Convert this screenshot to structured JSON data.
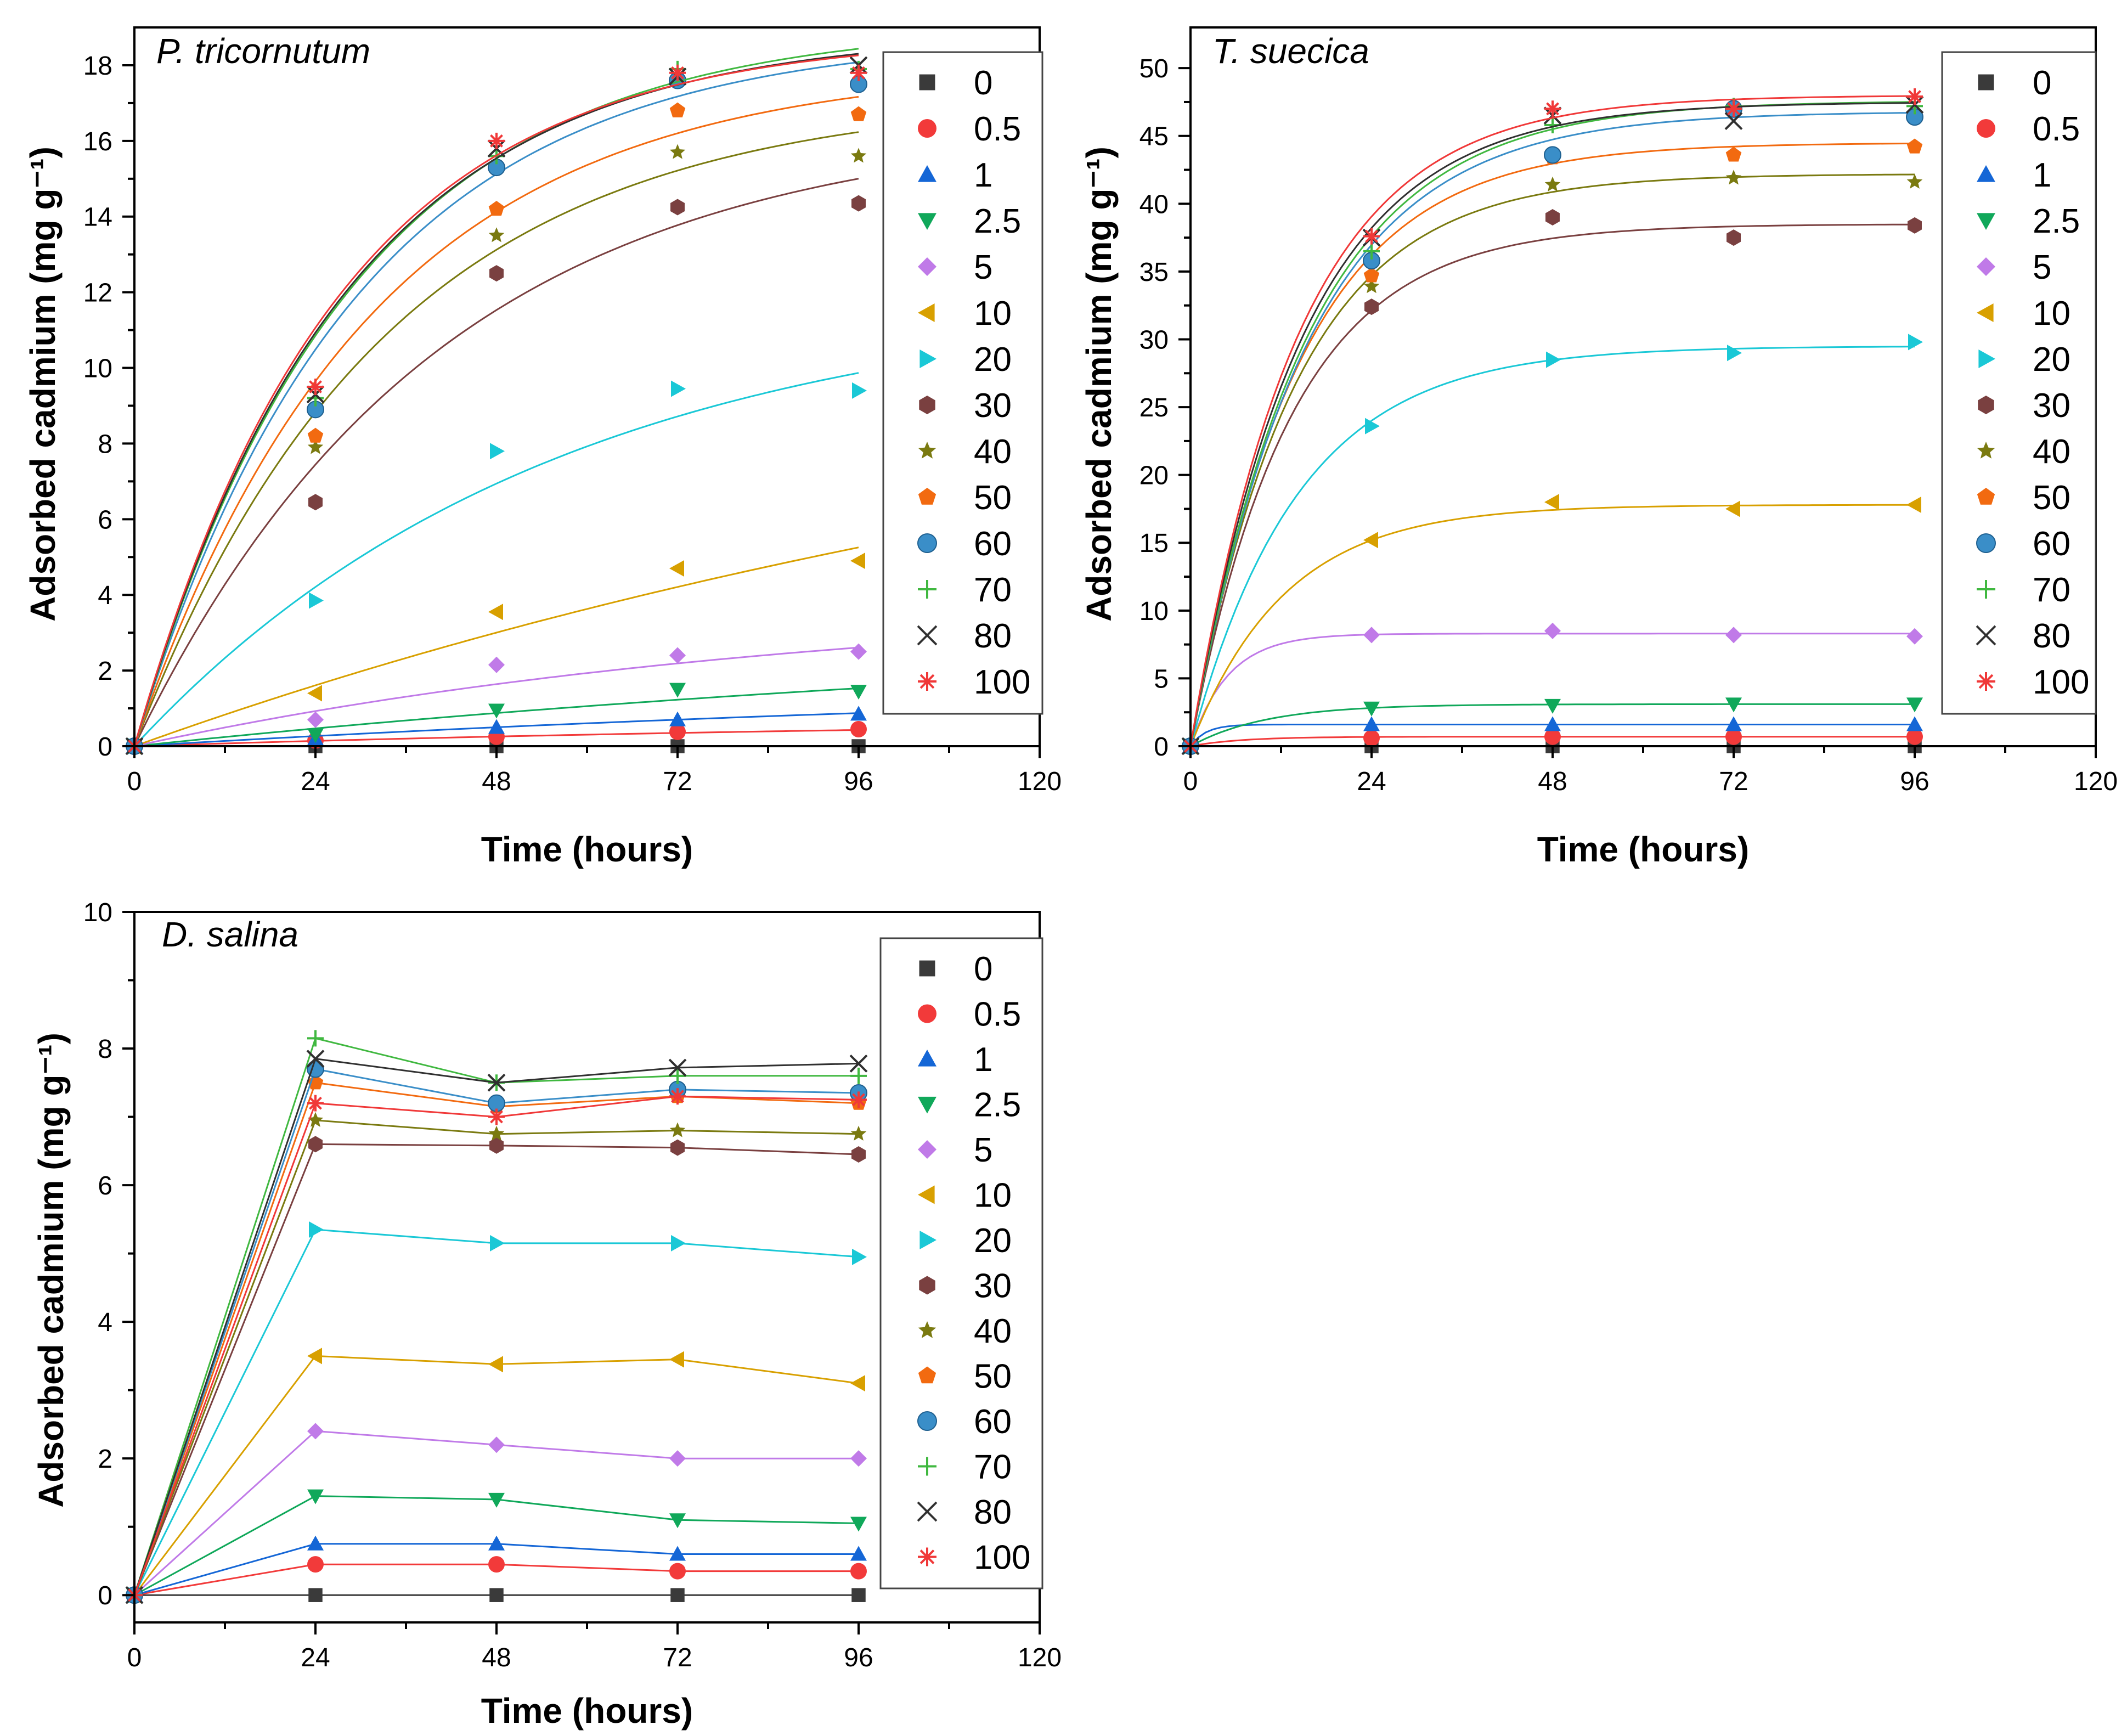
{
  "legend": {
    "labels": [
      "0",
      "0.5",
      "1",
      "2.5",
      "5",
      "10",
      "20",
      "30",
      "40",
      "50",
      "60",
      "70",
      "80",
      "100"
    ],
    "markers": [
      "square",
      "circle",
      "triangle-up",
      "triangle-down",
      "diamond",
      "triangle-left",
      "triangle-right",
      "hexagon",
      "star",
      "pentagon",
      "sphere",
      "plus",
      "cross",
      "asterisk"
    ],
    "colors": [
      "#3a3a3a",
      "#f23a3a",
      "#1466d6",
      "#10a85a",
      "#c07ae8",
      "#d8a000",
      "#1ac8d6",
      "#7a4040",
      "#7a7a10",
      "#f26a10",
      "#3a8ec8",
      "#40b840",
      "#303030",
      "#f03838"
    ]
  },
  "chart_data": [
    {
      "type": "scatter",
      "title": "P. tricornutum",
      "xlabel": "Time (hours)",
      "ylabel": "Adsorbed cadmium (mg g⁻¹)",
      "xlim": [
        0,
        120
      ],
      "ylim": [
        0,
        19
      ],
      "xticks": [
        0,
        24,
        48,
        72,
        96,
        120
      ],
      "yticks": [
        0,
        2,
        4,
        6,
        8,
        10,
        12,
        14,
        16,
        18
      ],
      "x": [
        0,
        24,
        48,
        72,
        96
      ],
      "fit": "exponential",
      "series": [
        {
          "name": "0",
          "values": [
            0,
            0,
            0,
            0,
            0
          ],
          "asym": 0,
          "k": 0.02
        },
        {
          "name": "0.5",
          "values": [
            0,
            0.15,
            0.25,
            0.38,
            0.45
          ],
          "asym": 0.8,
          "k": 0.008
        },
        {
          "name": "1",
          "values": [
            0,
            0.2,
            0.5,
            0.7,
            0.85
          ],
          "asym": 2.0,
          "k": 0.006
        },
        {
          "name": "2.5",
          "values": [
            0,
            0.3,
            0.95,
            1.5,
            1.45
          ],
          "asym": 3.5,
          "k": 0.006
        },
        {
          "name": "5",
          "values": [
            0,
            0.7,
            2.15,
            2.4,
            2.5
          ],
          "asym": 4.0,
          "k": 0.011
        },
        {
          "name": "10",
          "values": [
            0,
            1.4,
            3.55,
            4.7,
            4.9
          ],
          "asym": 12.0,
          "k": 0.006
        },
        {
          "name": "20",
          "values": [
            0,
            3.85,
            7.8,
            9.45,
            9.4
          ],
          "asym": 12.0,
          "k": 0.018
        },
        {
          "name": "30",
          "values": [
            0,
            6.45,
            12.5,
            14.25,
            14.35
          ],
          "asym": 16.5,
          "k": 0.025
        },
        {
          "name": "40",
          "values": [
            0,
            7.9,
            13.5,
            15.7,
            15.6
          ],
          "asym": 17.2,
          "k": 0.03
        },
        {
          "name": "50",
          "values": [
            0,
            8.2,
            14.2,
            16.8,
            16.7
          ],
          "asym": 18.0,
          "k": 0.032
        },
        {
          "name": "60",
          "values": [
            0,
            8.9,
            15.3,
            17.6,
            17.5
          ],
          "asym": 18.8,
          "k": 0.034
        },
        {
          "name": "70",
          "values": [
            0,
            9.2,
            15.6,
            17.9,
            17.9
          ],
          "asym": 19.1,
          "k": 0.035
        },
        {
          "name": "80",
          "values": [
            0,
            9.3,
            15.8,
            17.7,
            18.0
          ],
          "asym": 18.9,
          "k": 0.036
        },
        {
          "name": "100",
          "values": [
            0,
            9.5,
            16.0,
            17.8,
            17.8
          ],
          "asym": 18.8,
          "k": 0.037
        }
      ]
    },
    {
      "type": "scatter",
      "title": "T. suecica",
      "xlabel": "Time (hours)",
      "ylabel": "Adsorbed cadmium (mg g⁻¹)",
      "xlim": [
        0,
        120
      ],
      "ylim": [
        0,
        53
      ],
      "xticks": [
        0,
        24,
        48,
        72,
        96,
        120
      ],
      "yticks": [
        0,
        5,
        10,
        15,
        20,
        25,
        30,
        35,
        40,
        45,
        50
      ],
      "x": [
        0,
        24,
        48,
        72,
        96
      ],
      "fit": "exponential",
      "series": [
        {
          "name": "0",
          "values": [
            0,
            0,
            0,
            0,
            0
          ],
          "asym": 0,
          "k": 0.1
        },
        {
          "name": "0.5",
          "values": [
            0,
            0.6,
            0.7,
            0.7,
            0.7
          ],
          "asym": 0.7,
          "k": 0.15
        },
        {
          "name": "1",
          "values": [
            0,
            1.6,
            1.6,
            1.6,
            1.6
          ],
          "asym": 1.6,
          "k": 0.5
        },
        {
          "name": "2.5",
          "values": [
            0,
            2.8,
            3.0,
            3.1,
            3.1
          ],
          "asym": 3.1,
          "k": 0.1
        },
        {
          "name": "5",
          "values": [
            0,
            8.2,
            8.5,
            8.2,
            8.1
          ],
          "asym": 8.3,
          "k": 0.2
        },
        {
          "name": "10",
          "values": [
            0,
            15.2,
            18.0,
            17.5,
            17.8
          ],
          "asym": 17.8,
          "k": 0.08
        },
        {
          "name": "20",
          "values": [
            0,
            23.6,
            28.5,
            29.0,
            29.8
          ],
          "asym": 29.5,
          "k": 0.07
        },
        {
          "name": "30",
          "values": [
            0,
            32.4,
            39.0,
            37.5,
            38.4
          ],
          "asym": 38.5,
          "k": 0.075
        },
        {
          "name": "40",
          "values": [
            0,
            33.9,
            41.4,
            41.9,
            41.6
          ],
          "asym": 42.2,
          "k": 0.072
        },
        {
          "name": "50",
          "values": [
            0,
            34.7,
            43.4,
            43.6,
            44.2
          ],
          "asym": 44.5,
          "k": 0.07
        },
        {
          "name": "60",
          "values": [
            0,
            35.8,
            43.6,
            47.0,
            46.4
          ],
          "asym": 46.8,
          "k": 0.065
        },
        {
          "name": "70",
          "values": [
            0,
            36.5,
            45.8,
            47.2,
            47.2
          ],
          "asym": 47.6,
          "k": 0.065
        },
        {
          "name": "80",
          "values": [
            0,
            37.5,
            46.5,
            46.1,
            47.3
          ],
          "asym": 47.5,
          "k": 0.068
        },
        {
          "name": "100",
          "values": [
            0,
            37.6,
            47.0,
            47.0,
            47.9
          ],
          "asym": 48.0,
          "k": 0.07
        }
      ]
    },
    {
      "type": "line",
      "title": "D. salina",
      "xlabel": "Time (hours)",
      "ylabel": "Adsorbed cadmium (mg g⁻¹)",
      "xlim": [
        0,
        120
      ],
      "ylim": [
        -0.4,
        10
      ],
      "xticks": [
        0,
        24,
        48,
        72,
        96,
        120
      ],
      "yticks": [
        0,
        2,
        4,
        6,
        8,
        10
      ],
      "x": [
        0,
        24,
        48,
        72,
        96
      ],
      "series": [
        {
          "name": "0",
          "values": [
            0,
            0,
            0,
            0,
            0
          ]
        },
        {
          "name": "0.5",
          "values": [
            0,
            0.45,
            0.45,
            0.35,
            0.35
          ]
        },
        {
          "name": "1",
          "values": [
            0,
            0.75,
            0.75,
            0.6,
            0.6
          ]
        },
        {
          "name": "2.5",
          "values": [
            0,
            1.45,
            1.4,
            1.1,
            1.05
          ]
        },
        {
          "name": "5",
          "values": [
            0,
            2.4,
            2.2,
            2.0,
            2.0
          ]
        },
        {
          "name": "10",
          "values": [
            0,
            3.5,
            3.38,
            3.45,
            3.1
          ]
        },
        {
          "name": "20",
          "values": [
            0,
            5.35,
            5.15,
            5.15,
            4.95
          ]
        },
        {
          "name": "30",
          "values": [
            0,
            6.6,
            6.58,
            6.55,
            6.45
          ]
        },
        {
          "name": "40",
          "values": [
            0,
            6.95,
            6.75,
            6.8,
            6.75
          ]
        },
        {
          "name": "50",
          "values": [
            0,
            7.5,
            7.15,
            7.3,
            7.2
          ]
        },
        {
          "name": "60",
          "values": [
            0,
            7.7,
            7.2,
            7.4,
            7.35
          ]
        },
        {
          "name": "70",
          "values": [
            0,
            8.15,
            7.5,
            7.6,
            7.6
          ]
        },
        {
          "name": "80",
          "values": [
            0,
            7.85,
            7.5,
            7.72,
            7.78
          ]
        },
        {
          "name": "100",
          "values": [
            0,
            7.2,
            7.0,
            7.3,
            7.25
          ]
        }
      ]
    }
  ]
}
